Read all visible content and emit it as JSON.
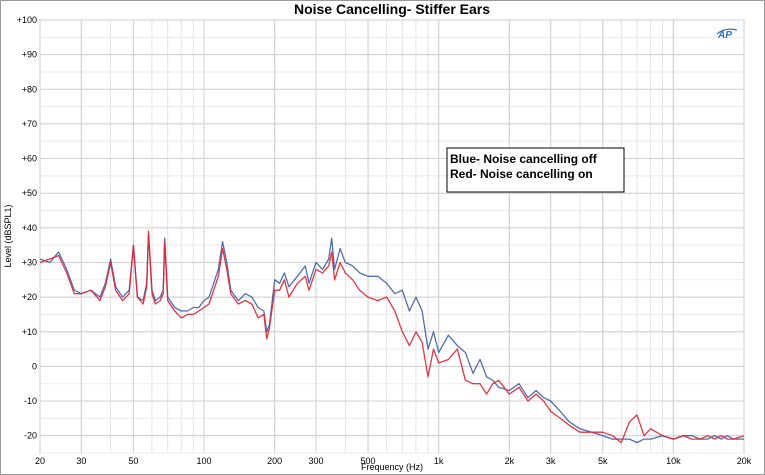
{
  "window": {
    "background": "#ffffff"
  },
  "chart_data": {
    "type": "line",
    "title": "Noise Cancelling- Stiffer Ears",
    "xlabel": "Frequency (Hz)",
    "ylabel": "Level (dBSPL1)",
    "xscale": "log",
    "xlim": [
      20,
      20000
    ],
    "ylim": [
      -25,
      100
    ],
    "grid": true,
    "logo_text": "AP",
    "x_ticks": [
      {
        "value": 20,
        "label": "20"
      },
      {
        "value": 30,
        "label": "30"
      },
      {
        "value": 50,
        "label": "50"
      },
      {
        "value": 100,
        "label": "100"
      },
      {
        "value": 200,
        "label": "200"
      },
      {
        "value": 300,
        "label": "300"
      },
      {
        "value": 500,
        "label": "500"
      },
      {
        "value": 1000,
        "label": "1k"
      },
      {
        "value": 2000,
        "label": "2k"
      },
      {
        "value": 3000,
        "label": "3k"
      },
      {
        "value": 5000,
        "label": "5k"
      },
      {
        "value": 10000,
        "label": "10k"
      },
      {
        "value": 20000,
        "label": "20k"
      }
    ],
    "y_ticks": [
      {
        "value": 100,
        "label": "+100"
      },
      {
        "value": 90,
        "label": "+90"
      },
      {
        "value": 80,
        "label": "+80"
      },
      {
        "value": 70,
        "label": "+70"
      },
      {
        "value": 60,
        "label": "+60"
      },
      {
        "value": 50,
        "label": "+50"
      },
      {
        "value": 40,
        "label": "+40"
      },
      {
        "value": 30,
        "label": "+30"
      },
      {
        "value": 20,
        "label": "+20"
      },
      {
        "value": 10,
        "label": "+10"
      },
      {
        "value": 0,
        "label": "0"
      },
      {
        "value": -10,
        "label": "-10"
      },
      {
        "value": -20,
        "label": "-20"
      }
    ],
    "legend": {
      "placement": "inside-right",
      "lines": [
        "Blue- Noise cancelling off",
        "Red- Noise cancelling on"
      ]
    },
    "series": [
      {
        "color": "#3f5fa8",
        "x": [
          20,
          22,
          24,
          26,
          28,
          30,
          33,
          36,
          38,
          40,
          42,
          45,
          48,
          50,
          52,
          55,
          57,
          58,
          60,
          62,
          65,
          67,
          68,
          70,
          75,
          80,
          85,
          90,
          95,
          100,
          105,
          110,
          115,
          120,
          125,
          130,
          140,
          150,
          160,
          170,
          180,
          185,
          190,
          200,
          210,
          220,
          230,
          250,
          270,
          280,
          300,
          320,
          340,
          350,
          360,
          380,
          400,
          430,
          460,
          500,
          550,
          600,
          650,
          700,
          750,
          800,
          850,
          900,
          950,
          1000,
          1100,
          1200,
          1300,
          1400,
          1500,
          1600,
          1700,
          1800,
          2000,
          2200,
          2400,
          2600,
          2800,
          3000,
          3300,
          3600,
          4000,
          4500,
          5000,
          5500,
          6000,
          6500,
          7000,
          7500,
          8000,
          9000,
          10000,
          11000,
          12000,
          13000,
          14000,
          15000,
          16000,
          17000,
          18000,
          20000
        ],
        "y": [
          31,
          30,
          33,
          28,
          22,
          21,
          22,
          20,
          24,
          31,
          23,
          20,
          22,
          35,
          20,
          19,
          24,
          38,
          22,
          19,
          20,
          22,
          37,
          20,
          17,
          16,
          16,
          17,
          17,
          19,
          20,
          24,
          28,
          36,
          30,
          22,
          19,
          21,
          20,
          17,
          16,
          10,
          12,
          25,
          24,
          27,
          23,
          26,
          29,
          24,
          30,
          28,
          31,
          37,
          28,
          34,
          30,
          29,
          27,
          26,
          26,
          24,
          21,
          22,
          16,
          20,
          16,
          5,
          10,
          4,
          9,
          6,
          4,
          -2,
          2,
          -3,
          -4,
          -6,
          -7,
          -5,
          -9,
          -7,
          -9,
          -10,
          -13,
          -16,
          -18,
          -19,
          -20,
          -21,
          -21,
          -21,
          -22,
          -21,
          -21,
          -20,
          -21,
          -20,
          -20,
          -21,
          -21,
          -20,
          -21,
          -20,
          -21,
          -21
        ]
      },
      {
        "color": "#e02030",
        "x": [
          20,
          22,
          24,
          26,
          28,
          30,
          33,
          36,
          38,
          40,
          42,
          45,
          48,
          50,
          52,
          55,
          57,
          58,
          60,
          62,
          65,
          67,
          68,
          70,
          75,
          80,
          85,
          90,
          95,
          100,
          105,
          110,
          115,
          120,
          125,
          130,
          140,
          150,
          160,
          170,
          180,
          185,
          190,
          200,
          210,
          220,
          230,
          250,
          270,
          280,
          300,
          320,
          340,
          350,
          360,
          380,
          400,
          430,
          460,
          500,
          550,
          600,
          650,
          700,
          750,
          800,
          850,
          900,
          950,
          1000,
          1100,
          1200,
          1300,
          1400,
          1500,
          1600,
          1700,
          1800,
          2000,
          2200,
          2400,
          2600,
          2800,
          3000,
          3300,
          3600,
          4000,
          4500,
          5000,
          5500,
          6000,
          6500,
          7000,
          7500,
          8000,
          9000,
          10000,
          11000,
          12000,
          13000,
          14000,
          15000,
          16000,
          17000,
          18000,
          20000
        ],
        "y": [
          30,
          31,
          32,
          27,
          21,
          21,
          22,
          19,
          23,
          30,
          22,
          19,
          21,
          35,
          20,
          18,
          23,
          39,
          21,
          18,
          19,
          21,
          36,
          19,
          16,
          14,
          15,
          15,
          16,
          17,
          18,
          22,
          26,
          34,
          28,
          21,
          18,
          19,
          18,
          14,
          15,
          8,
          11,
          22,
          22,
          25,
          20,
          24,
          26,
          22,
          28,
          27,
          29,
          33,
          25,
          30,
          27,
          25,
          22,
          20,
          19,
          20,
          16,
          10,
          6,
          10,
          7,
          -3,
          5,
          1,
          2,
          5,
          -4,
          -5,
          -5,
          -8,
          -5,
          -4,
          -8,
          -6,
          -10,
          -8,
          -10,
          -13,
          -15,
          -17,
          -19,
          -19,
          -19,
          -20,
          -22,
          -16,
          -14,
          -20,
          -18,
          -20,
          -21,
          -20,
          -21,
          -21,
          -20,
          -21,
          -20,
          -21,
          -21,
          -20
        ]
      }
    ]
  }
}
